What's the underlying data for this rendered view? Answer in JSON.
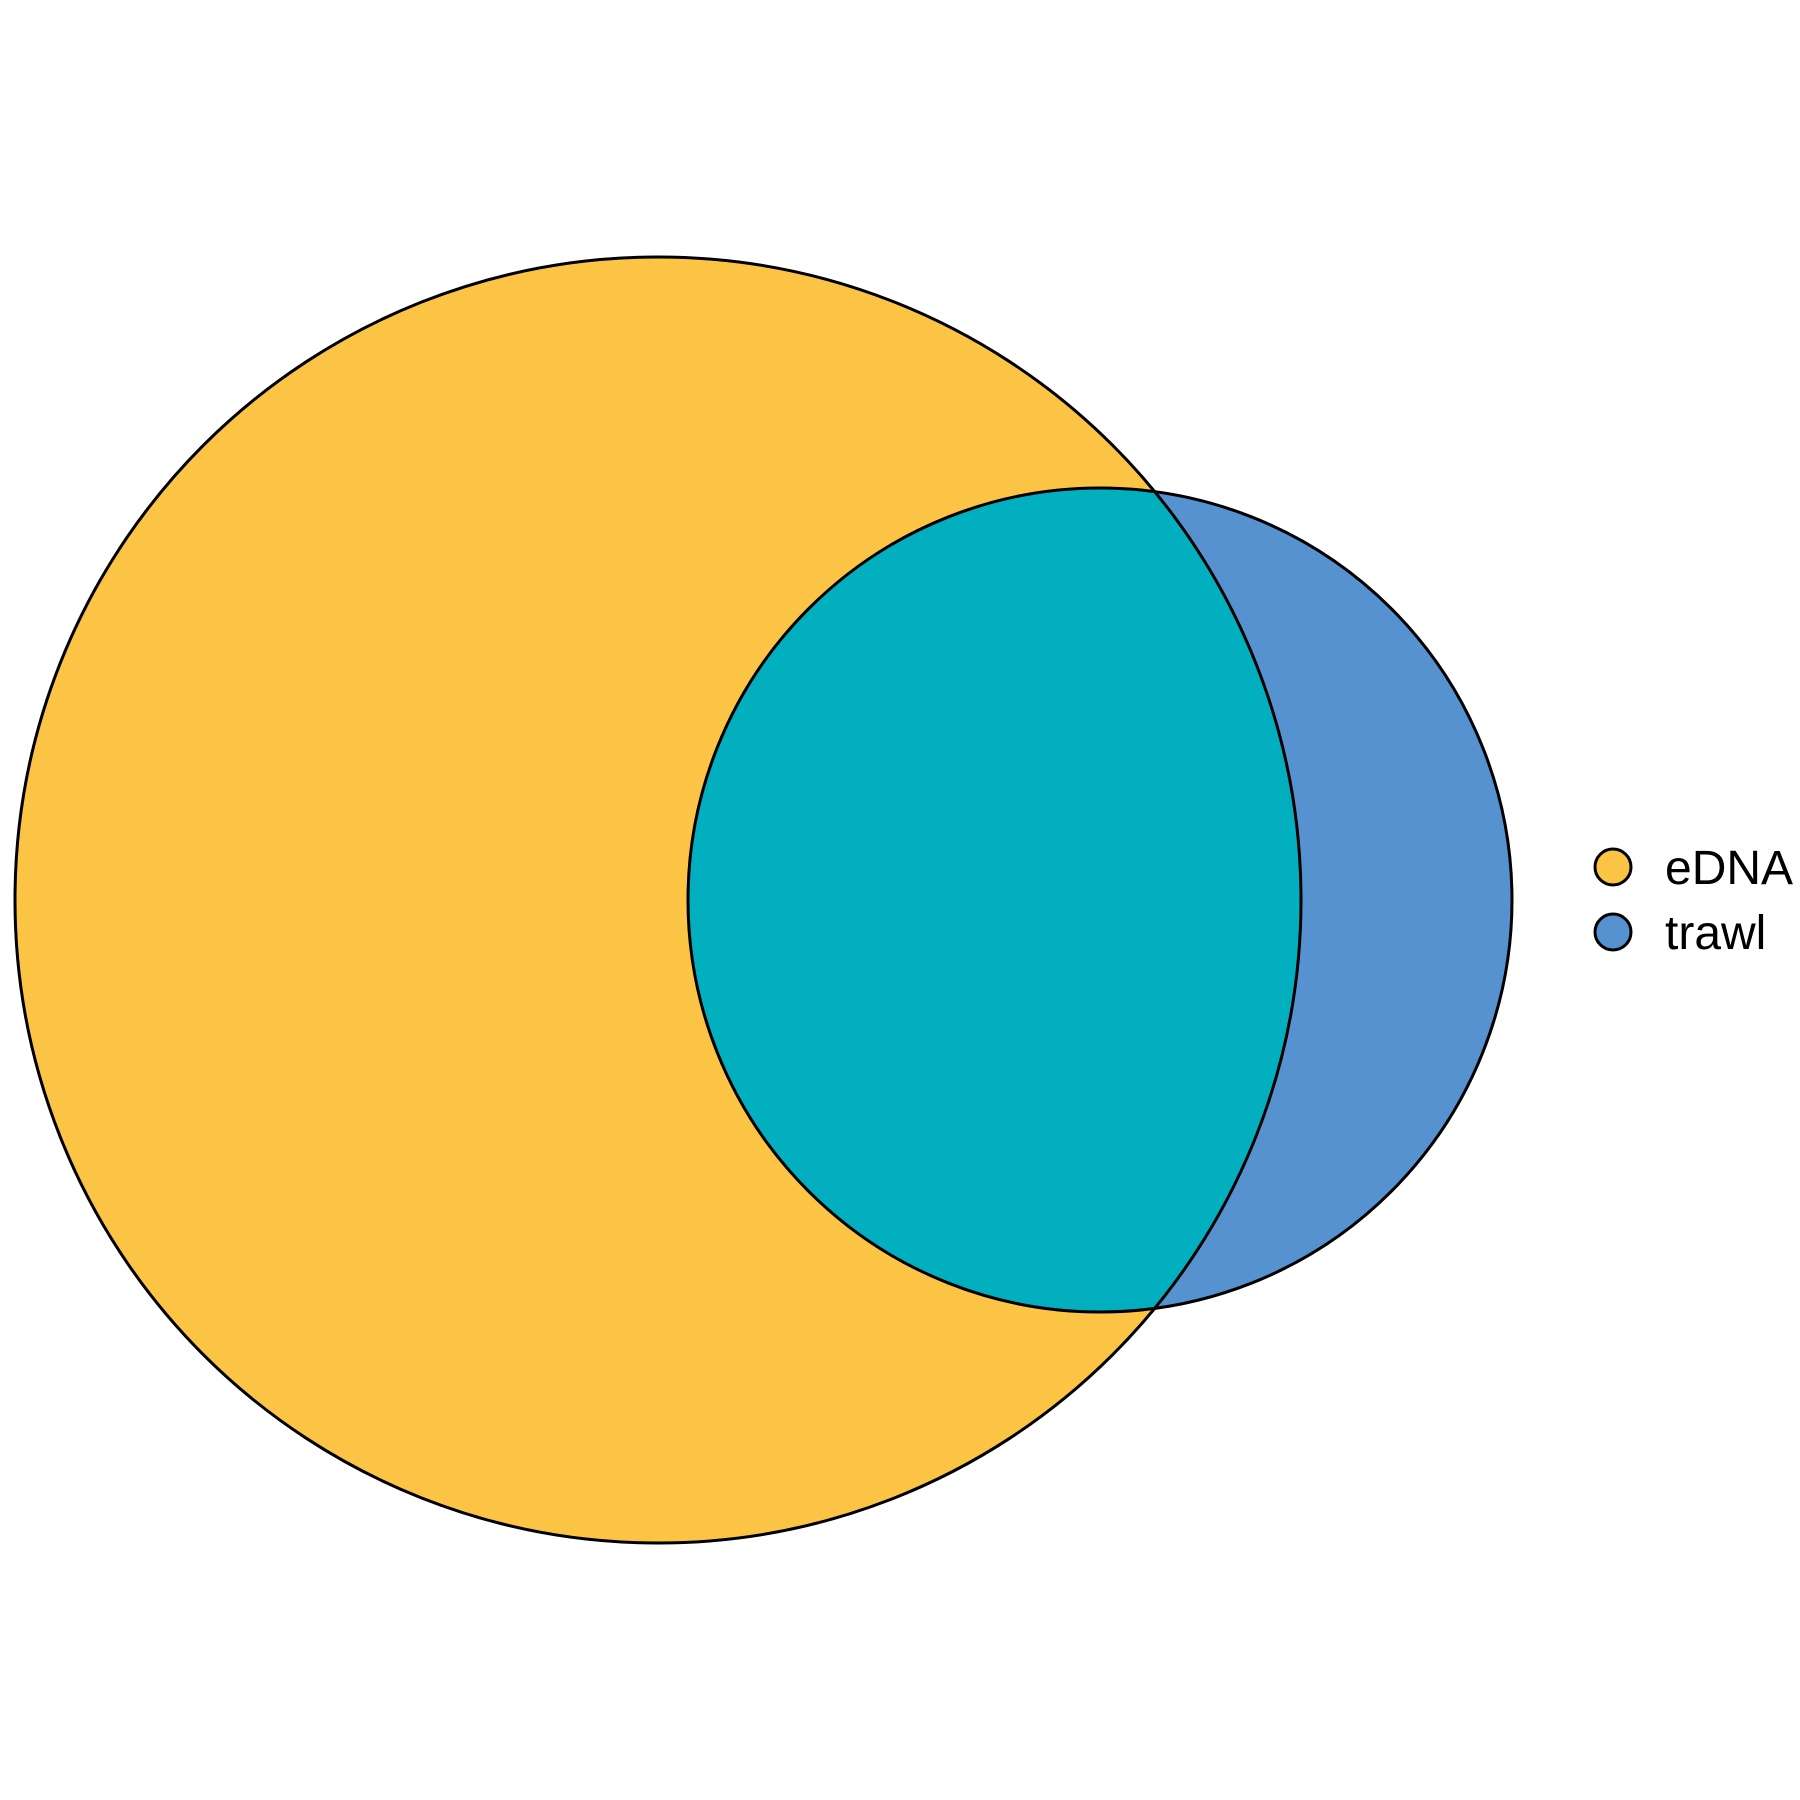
{
  "diagram": {
    "type": "venn",
    "sets": [
      {
        "name": "eDNA",
        "color": "#FBC444"
      },
      {
        "name": "trawl",
        "color": "#5592CF"
      }
    ],
    "overlap_color": "#02AFBE",
    "outline_color": "#000000",
    "legend_placement": "right"
  },
  "legend": {
    "items": [
      {
        "label": "eDNA",
        "color": "#FBC444"
      },
      {
        "label": "trawl",
        "color": "#5592CF"
      }
    ]
  }
}
